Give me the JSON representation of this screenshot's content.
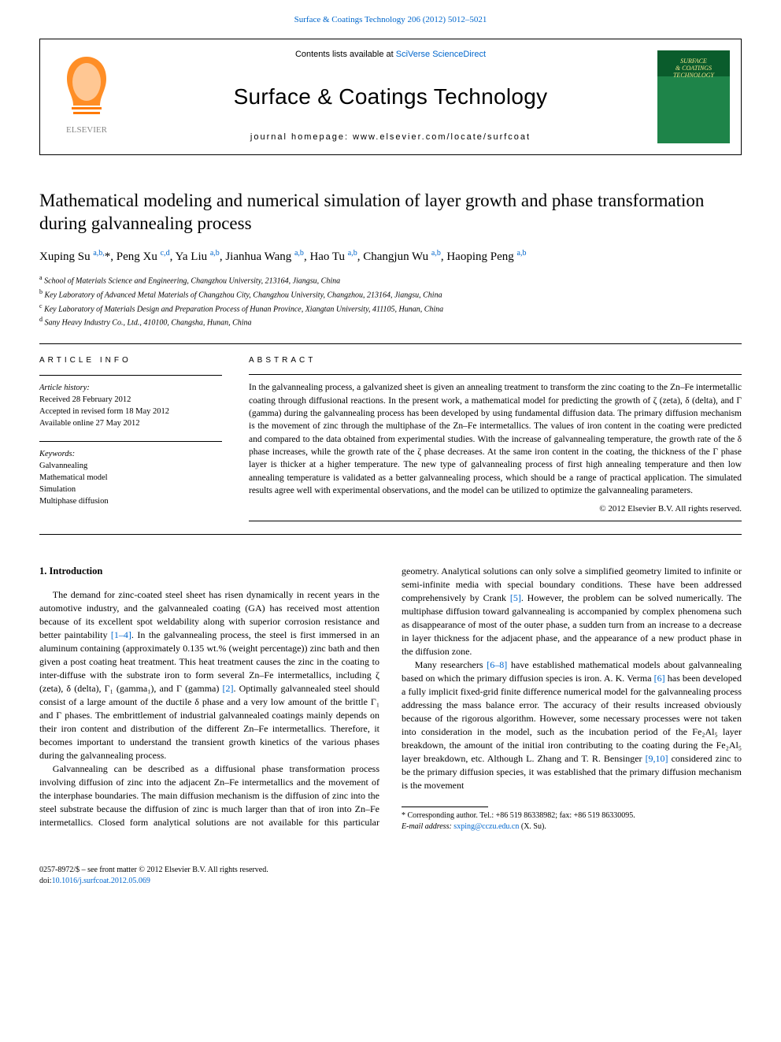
{
  "top_link": "Surface & Coatings Technology 206 (2012) 5012–5021",
  "header": {
    "contents_prefix": "Contents lists available at ",
    "contents_link": "SciVerse ScienceDirect",
    "journal_name": "Surface & Coatings Technology",
    "homepage_label": "journal homepage: ",
    "homepage_url": "www.elsevier.com/locate/surfcoat",
    "cover_lines": [
      "SURFACE",
      "& COATINGS",
      "TECHNOLOGY"
    ]
  },
  "title": "Mathematical modeling and numerical simulation of layer growth and phase transformation during galvannealing process",
  "authors_html": "Xuping Su <sup>a,b,</sup>*, Peng Xu <sup>c,d</sup>, Ya Liu <sup>a,b</sup>, Jianhua Wang <sup>a,b</sup>, Hao Tu <sup>a,b</sup>, Changjun Wu <sup>a,b</sup>, Haoping Peng <sup>a,b</sup>",
  "affiliations": [
    {
      "sup": "a",
      "text": "School of Materials Science and Engineering, Changzhou University, 213164, Jiangsu, China"
    },
    {
      "sup": "b",
      "text": "Key Laboratory of Advanced Metal Materials of Changzhou City, Changzhou University, Changzhou, 213164, Jiangsu, China"
    },
    {
      "sup": "c",
      "text": "Key Laboratory of Materials Design and Preparation Process of Hunan Province, Xiangtan University, 411105, Hunan, China"
    },
    {
      "sup": "d",
      "text": "Sany Heavy Industry Co., Ltd., 410100, Changsha, Hunan, China"
    }
  ],
  "article_info": {
    "head": "ARTICLE INFO",
    "history_head": "Article history:",
    "history": [
      "Received 28 February 2012",
      "Accepted in revised form 18 May 2012",
      "Available online 27 May 2012"
    ],
    "keywords_head": "Keywords:",
    "keywords": [
      "Galvannealing",
      "Mathematical model",
      "Simulation",
      "Multiphase diffusion"
    ]
  },
  "abstract": {
    "head": "ABSTRACT",
    "text": "In the galvannealing process, a galvanized sheet is given an annealing treatment to transform the zinc coating to the Zn–Fe intermetallic coating through diffusional reactions. In the present work, a mathematical model for predicting the growth of ζ (zeta), δ (delta), and Γ (gamma) during the galvannealing process has been developed by using fundamental diffusion data. The primary diffusion mechanism is the movement of zinc through the multiphase of the Zn–Fe intermetallics. The values of iron content in the coating were predicted and compared to the data obtained from experimental studies. With the increase of galvannealing temperature, the growth rate of the δ phase increases, while the growth rate of the ζ phase decreases. At the same iron content in the coating, the thickness of the Γ phase layer is thicker at a higher temperature. The new type of galvannealing process of first high annealing temperature and then low annealing temperature is validated as a better galvannealing process, which should be a range of practical application. The simulated results agree well with experimental observations, and the model can be utilized to optimize the galvannealing parameters.",
    "copyright": "© 2012 Elsevier B.V. All rights reserved."
  },
  "section1": {
    "head": "1. Introduction",
    "p1": "The demand for zinc-coated steel sheet has risen dynamically in recent years in the automotive industry, and the galvannealed coating (GA) has received most attention because of its excellent spot weldability along with superior corrosion resistance and better paintability ",
    "p1_ref": "[1–4]",
    "p1b": ". In the galvannealing process, the steel is first immersed in an aluminum containing (approximately 0.135 wt.% (weight percentage)) zinc bath and then given a post coating heat treatment. This heat treatment causes the zinc in the coating to inter-diffuse with the substrate iron to form several Zn–Fe intermetallics, including ζ (zeta), δ (delta), Γ₁ (gamma₁), and Γ (gamma) ",
    "p1_ref2": "[2]",
    "p1c": ". Optimally galvannealed steel should consist of a large amount of the ductile δ phase and a very low amount of the brittle Γ₁ and Γ phases. The embrittlement of industrial galvannealed coatings mainly depends on their iron content and distribution of the different Zn–Fe intermetallics. Therefore, it becomes important to understand the transient growth kinetics of the various phases during the galvannealing process.",
    "p2": "Galvannealing can be described as a diffusional phase transformation process involving diffusion of zinc into the adjacent Zn–Fe intermetallics and the movement of the interphase boundaries. The main diffusion mechanism is the diffusion of zinc into the steel substrate because the diffusion of zinc is much larger than that of iron into Zn–Fe intermetallics. Closed form analytical solutions are not available for this particular geometry. Analytical solutions can only solve a simplified geometry limited to infinite or semi-infinite media with special boundary conditions. These have been addressed comprehensively by Crank ",
    "p2_ref": "[5]",
    "p2b": ". However, the problem can be solved numerically. The multiphase diffusion toward galvannealing is accompanied by complex phenomena such as disappearance of most of the outer phase, a sudden turn from an increase to a decrease in layer thickness for the adjacent phase, and the appearance of a new product phase in the diffusion zone.",
    "p3a": "Many researchers ",
    "p3_ref1": "[6–8]",
    "p3b": " have established mathematical models about galvannealing based on which the primary diffusion species is iron. A. K. Verma ",
    "p3_ref2": "[6]",
    "p3c": " has been developed a fully implicit fixed-grid finite difference numerical model for the galvannealing process addressing the mass balance error. The accuracy of their results increased obviously because of the rigorous algorithm. However, some necessary processes were not taken into consideration in the model, such as the incubation period of the Fe₂Al₅ layer breakdown, the amount of the initial iron contributing to the coating during the Fe₂Al₅ layer breakdown, etc. Although L. Zhang and T. R. Bensinger ",
    "p3_ref3": "[9,10]",
    "p3d": " considered zinc to be the primary diffusion species, it was established that the primary diffusion mechanism is the movement"
  },
  "footnote": {
    "corr": "* Corresponding author. Tel.: +86 519 86338982; fax: +86 519 86330095.",
    "email_label": "E-mail address: ",
    "email": "sxping@cczu.edu.cn",
    "email_suffix": " (X. Su)."
  },
  "bottom": {
    "line1": "0257-8972/$ – see front matter © 2012 Elsevier B.V. All rights reserved.",
    "doi_label": "doi:",
    "doi": "10.1016/j.surfcoat.2012.05.069"
  },
  "colors": {
    "link": "#0066cc",
    "cover_bg_top": "#0a5c2c",
    "cover_bg_bottom": "#1e8449",
    "cover_text": "#f0e68c",
    "elsevier_orange": "#ff7a00"
  }
}
